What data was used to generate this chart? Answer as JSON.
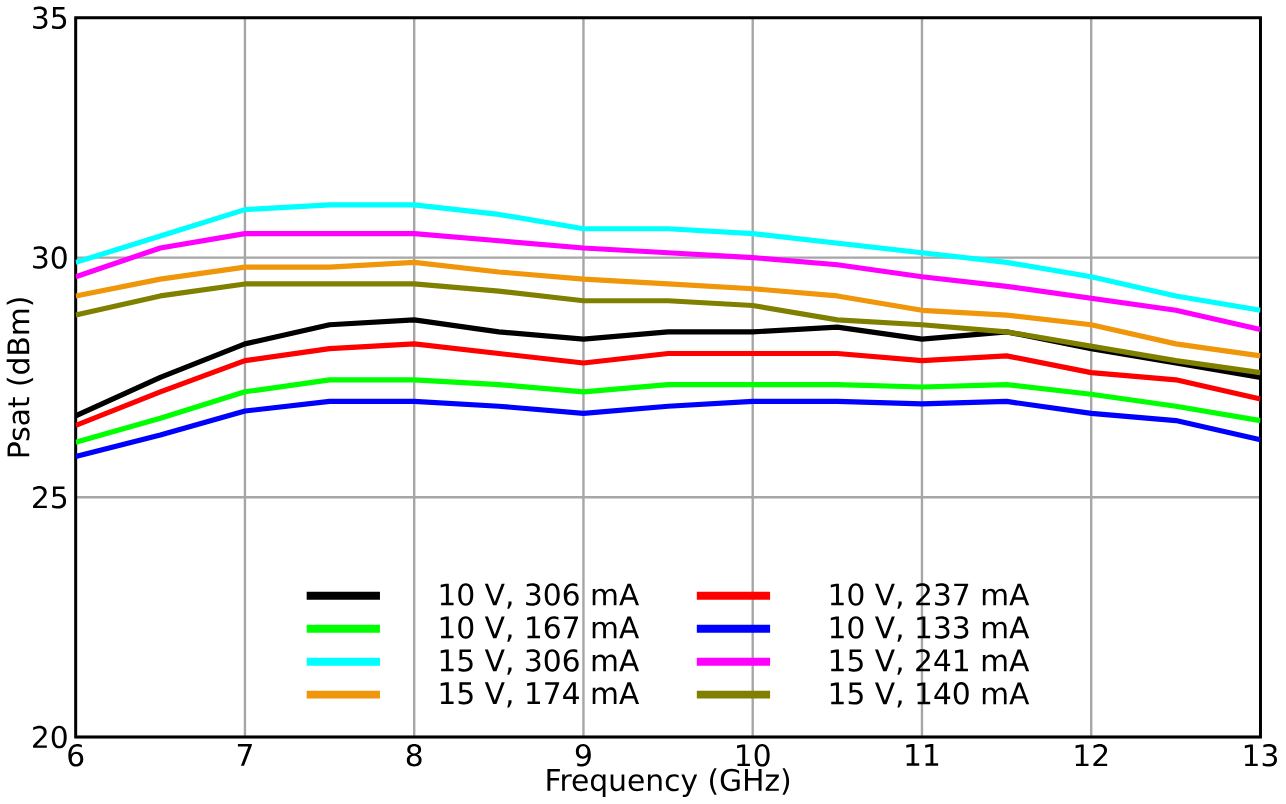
{
  "chart_data": {
    "type": "line",
    "xlabel": "Frequency (GHz)",
    "ylabel": "Psat (dBm)",
    "x": [
      6,
      6.5,
      7,
      7.5,
      8,
      8.5,
      9,
      9.5,
      10,
      10.5,
      11,
      11.5,
      12,
      12.5,
      13
    ],
    "xlim": [
      6,
      13
    ],
    "ylim": [
      20,
      35
    ],
    "xticks": [
      6,
      7,
      8,
      9,
      10,
      11,
      12,
      13
    ],
    "yticks": [
      20,
      25,
      30,
      35
    ],
    "grid": true,
    "legend": "bottom",
    "marker": "none",
    "line_style": "solid",
    "series": [
      {
        "name": "10 V, 306 mA",
        "color": "#000000",
        "values": [
          26.7,
          27.5,
          28.2,
          28.6,
          28.7,
          28.45,
          28.3,
          28.45,
          28.45,
          28.55,
          28.3,
          28.45,
          28.1,
          27.8,
          27.5
        ]
      },
      {
        "name": "10 V, 237 mA",
        "color": "#ff0000",
        "values": [
          26.5,
          27.2,
          27.85,
          28.1,
          28.2,
          28.0,
          27.8,
          28.0,
          28.0,
          28.0,
          27.85,
          27.95,
          27.6,
          27.45,
          27.05
        ]
      },
      {
        "name": "10 V, 167 mA",
        "color": "#00ff00",
        "values": [
          26.15,
          26.65,
          27.2,
          27.45,
          27.45,
          27.35,
          27.2,
          27.35,
          27.35,
          27.35,
          27.3,
          27.35,
          27.15,
          26.9,
          26.6
        ]
      },
      {
        "name": "10 V, 133 mA",
        "color": "#0000ff",
        "values": [
          25.85,
          26.3,
          26.8,
          27.0,
          27.0,
          26.9,
          26.75,
          26.9,
          27.0,
          27.0,
          26.95,
          27.0,
          26.75,
          26.6,
          26.2
        ]
      },
      {
        "name": "15 V, 306 mA",
        "color": "#00ffff",
        "values": [
          29.9,
          30.45,
          31.0,
          31.1,
          31.1,
          30.9,
          30.6,
          30.6,
          30.5,
          30.3,
          30.1,
          29.9,
          29.6,
          29.2,
          28.9
        ]
      },
      {
        "name": "15 V, 241 mA",
        "color": "#ff00ff",
        "values": [
          29.6,
          30.2,
          30.5,
          30.5,
          30.5,
          30.35,
          30.2,
          30.1,
          30.0,
          29.85,
          29.6,
          29.4,
          29.15,
          28.9,
          28.5
        ]
      },
      {
        "name": "15 V, 174 mA",
        "color": "#f0960a",
        "values": [
          29.2,
          29.55,
          29.8,
          29.8,
          29.9,
          29.7,
          29.55,
          29.45,
          29.35,
          29.2,
          28.9,
          28.8,
          28.6,
          28.2,
          27.95
        ]
      },
      {
        "name": "15 V, 140 mA",
        "color": "#808000",
        "values": [
          28.8,
          29.2,
          29.45,
          29.45,
          29.45,
          29.3,
          29.1,
          29.1,
          29.0,
          28.7,
          28.6,
          28.45,
          28.15,
          27.85,
          27.6
        ]
      }
    ]
  }
}
